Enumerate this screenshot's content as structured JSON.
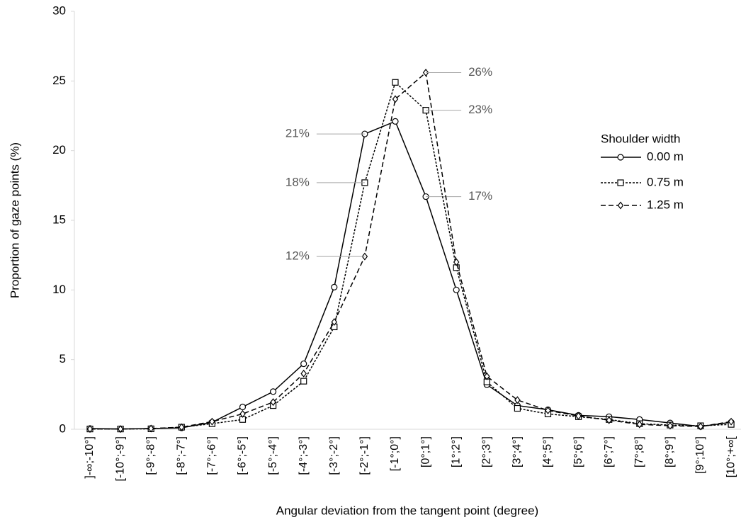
{
  "chart_data": {
    "type": "line",
    "x_label": "Angular deviation from the tangent point (degree)",
    "y_label": "Proportion of gaze points  (%)",
    "legend_title": "Shoulder width",
    "categories": [
      "]-∞;-10°]",
      "[-10°;-9°]",
      "[-9°;-8°]",
      "[-8°;-7°]",
      "[-7°;-6°]",
      "[-6°;-5°]",
      "[-5°;-4°]",
      "[-4°;-3°]",
      "[-3°;-2°]",
      "[-2°;-1°]",
      "[-1°;0°]",
      "[0°;1°]",
      "[1°;2°]",
      "[2°;3°]",
      "[3°;4°]",
      "[4°;5°]",
      "[5°;6°]",
      "[6°;7°]",
      "[7°;8°]",
      "[8°;9°]",
      "[9°;10°]",
      "[10°;+∞["
    ],
    "ylim": [
      0,
      30
    ],
    "yticks": [
      0,
      5,
      10,
      15,
      20,
      25,
      30
    ],
    "series": [
      {
        "name": "0.00 m",
        "color": "#000000",
        "marker": "circle",
        "linestyle": "solid",
        "values": [
          0.05,
          0.02,
          0.05,
          0.1,
          0.5,
          1.6,
          2.7,
          4.7,
          10.2,
          21.2,
          22.1,
          16.7,
          10.0,
          3.2,
          1.7,
          1.4,
          1.0,
          0.9,
          0.7,
          0.45,
          0.2,
          0.5
        ],
        "value_labels": [
          null,
          null,
          null,
          null,
          null,
          null,
          null,
          null,
          null,
          "21%",
          null,
          "17%",
          null,
          null,
          null,
          null,
          null,
          null,
          null,
          null,
          null,
          null
        ]
      },
      {
        "name": "0.75 m",
        "color": "#000000",
        "marker": "square",
        "linestyle": "dotted",
        "values": [
          0.02,
          0.02,
          0.03,
          0.15,
          0.4,
          0.7,
          1.7,
          3.45,
          7.35,
          17.7,
          24.9,
          22.9,
          11.6,
          3.4,
          1.5,
          1.1,
          0.9,
          0.7,
          0.4,
          0.3,
          0.25,
          0.35
        ],
        "value_labels": [
          null,
          null,
          null,
          null,
          null,
          null,
          null,
          null,
          null,
          "18%",
          null,
          "23%",
          null,
          null,
          null,
          null,
          null,
          null,
          null,
          null,
          null,
          null
        ]
      },
      {
        "name": "1.25 m",
        "color": "#000000",
        "marker": "diamond",
        "linestyle": "dashed",
        "values": [
          0.02,
          0.02,
          0.05,
          0.15,
          0.55,
          1.1,
          1.95,
          4.0,
          7.7,
          12.4,
          23.7,
          25.6,
          12.0,
          3.8,
          2.1,
          1.35,
          0.95,
          0.65,
          0.35,
          0.25,
          0.2,
          0.55
        ],
        "value_labels": [
          null,
          null,
          null,
          null,
          null,
          null,
          null,
          null,
          null,
          "12%",
          null,
          "26%",
          null,
          null,
          null,
          null,
          null,
          null,
          null,
          null,
          null,
          null
        ]
      }
    ]
  }
}
